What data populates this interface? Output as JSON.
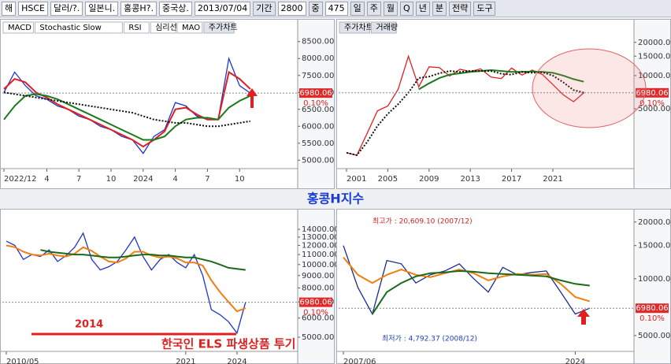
{
  "toolbar": {
    "items": [
      "해",
      "HSCE",
      "달러/?.",
      "일본니.",
      "홍콩H?.",
      "중국상.",
      "2013/07/04",
      "기간",
      "2800",
      "중",
      "475"
    ],
    "periods": [
      "일",
      "주",
      "월",
      "Q",
      "년",
      "분"
    ],
    "menus": [
      "전략",
      "도구"
    ]
  },
  "title": "홍콩H지수",
  "chart_data": [
    {
      "type": "line",
      "tabs": [
        "MACD",
        "Stochastic Slow",
        "RSI",
        "심리선",
        "MAO",
        "주가차트"
      ],
      "ylim": [
        4774,
        8680
      ],
      "yticks": [
        {
          "value": 5000,
          "label": "5000.00"
        },
        {
          "value": 5500,
          "label": "5500.00"
        },
        {
          "value": 6000,
          "label": "6000.00"
        },
        {
          "value": 6500,
          "label": "6500.00"
        },
        {
          "value": 7000,
          "label": "7000.00"
        },
        {
          "value": 7500,
          "label": "7500.00"
        },
        {
          "value": 8000,
          "label": "8000.00"
        },
        {
          "value": 8500,
          "label": "8500.00"
        }
      ],
      "xticks": [
        {
          "value": 0,
          "label": "2022/12"
        },
        {
          "value": 4,
          "label": "4"
        },
        {
          "value": 7,
          "label": "7"
        },
        {
          "value": 10,
          "label": "10"
        },
        {
          "value": 13,
          "label": "2024"
        },
        {
          "value": 16,
          "label": "4"
        },
        {
          "value": 19,
          "label": "7"
        },
        {
          "value": 22,
          "label": "10"
        }
      ],
      "last": 6980.06,
      "change": "0.10%",
      "series": [
        {
          "color": "#2233cc",
          "values": [
            7000,
            7600,
            7200,
            6900,
            6800,
            6600,
            6500,
            6300,
            6200,
            6000,
            5900,
            5700,
            5600,
            5200,
            5700,
            5900,
            6700,
            6600,
            6300,
            6200,
            6200,
            8000,
            7200,
            6980
          ]
        },
        {
          "color": "#e02020",
          "values": [
            7100,
            7400,
            7300,
            7000,
            6850,
            6650,
            6500,
            6350,
            6200,
            6050,
            5900,
            5750,
            5600,
            5400,
            5600,
            5850,
            6500,
            6550,
            6350,
            6200,
            6200,
            7600,
            7400,
            7100
          ]
        },
        {
          "color": "#1a7a1a",
          "values": [
            6200,
            6600,
            6900,
            6950,
            6900,
            6800,
            6650,
            6500,
            6350,
            6200,
            6050,
            5900,
            5750,
            5600,
            5600,
            5700,
            6000,
            6200,
            6250,
            6250,
            6200,
            6550,
            6750,
            6900
          ]
        },
        {
          "color": "#111111",
          "dash": true,
          "values": [
            7000,
            6950,
            6900,
            6850,
            6800,
            6750,
            6700,
            6650,
            6600,
            6550,
            6500,
            6450,
            6400,
            6300,
            6200,
            6150,
            6100,
            6100,
            6050,
            6000,
            6000,
            6050,
            6100,
            6150
          ]
        }
      ]
    },
    {
      "type": "line",
      "tabs": [
        "주가차트",
        "거래량"
      ],
      "log_scale": true,
      "ylim": [
        1460,
        23100
      ],
      "yticks": [
        {
          "value": 5000,
          "label": "5000.00"
        },
        {
          "value": 10000,
          "label": "10000.00"
        },
        {
          "value": 15000,
          "label": "15000.00"
        },
        {
          "value": 20000,
          "label": "20000.00"
        }
      ],
      "xticks": [
        {
          "value": 0,
          "label": "2001"
        },
        {
          "value": 4,
          "label": "2005"
        },
        {
          "value": 8,
          "label": "2009"
        },
        {
          "value": 12,
          "label": "2013"
        },
        {
          "value": 16,
          "label": "2017"
        },
        {
          "value": 20,
          "label": "2021"
        }
      ],
      "last": 6980.06,
      "change": "0.10%",
      "series": [
        {
          "color": "#e02020",
          "values": [
            2000,
            1900,
            3000,
            4800,
            5300,
            7500,
            15000,
            7900,
            12000,
            11800,
            9900,
            11400,
            10900,
            11500,
            9700,
            9400,
            11700,
            10100,
            11200,
            10200,
            8300,
            6700,
            5800,
            6980
          ]
        },
        {
          "color": "#1a7a1a",
          "values": [
            null,
            null,
            null,
            null,
            null,
            null,
            null,
            7500,
            8500,
            9500,
            10200,
            10500,
            10800,
            11000,
            11200,
            11000,
            10800,
            10800,
            10900,
            10800,
            10600,
            10000,
            9300,
            8800
          ]
        },
        {
          "color": "#111111",
          "dash": true,
          "values": [
            2000,
            1900,
            2500,
            3500,
            4500,
            5500,
            7000,
            9500,
            9800,
            10500,
            11000,
            10800,
            11000,
            11000,
            11000,
            10400,
            10200,
            10800,
            10600,
            10700,
            10000,
            8700,
            7400,
            7000
          ]
        }
      ]
    },
    {
      "type": "line",
      "log_scale": true,
      "ylim": [
        4400,
        16400
      ],
      "yticks": [
        {
          "value": 5000,
          "label": "5000.00"
        },
        {
          "value": 6000,
          "label": "6000.00"
        },
        {
          "value": 7000,
          "label": "7000.00"
        },
        {
          "value": 8000,
          "label": "8000.00"
        },
        {
          "value": 9000,
          "label": "9000.00"
        },
        {
          "value": 10000,
          "label": "10000.00"
        },
        {
          "value": 11000,
          "label": "11000.00"
        },
        {
          "value": 12000,
          "label": "12000.00"
        },
        {
          "value": 13000,
          "label": "13000.00"
        },
        {
          "value": 14000,
          "label": "14000.00"
        }
      ],
      "xticks": [
        {
          "value": 0,
          "label": "2010/05"
        },
        {
          "value": 21,
          "label": "2021"
        },
        {
          "value": 27,
          "label": "2024"
        }
      ],
      "last": 6980.06,
      "change": "0.10%",
      "annotations": [
        "2014",
        "한국인 ELS 파생상품 투기"
      ],
      "series": [
        {
          "color": "#2233cc",
          "values": [
            12500,
            12000,
            10500,
            11000,
            10800,
            11500,
            10300,
            10900,
            11800,
            13500,
            10500,
            9500,
            9800,
            10300,
            11500,
            13000,
            10800,
            9500,
            10500,
            11000,
            10200,
            9700,
            11000,
            9000,
            6500,
            6200,
            5800,
            5200,
            6980
          ]
        },
        {
          "color": "#f07f10",
          "values": [
            12000,
            11800,
            11300,
            11000,
            10900,
            11100,
            10900,
            10800,
            11100,
            11800,
            11400,
            10800,
            10300,
            10200,
            10600,
            11300,
            11300,
            10900,
            10700,
            10800,
            10600,
            10200,
            10200,
            9900,
            8600,
            7700,
            7000,
            6400,
            6600
          ]
        },
        {
          "color": "#1a6a1a",
          "values": [
            null,
            null,
            null,
            null,
            11500,
            11300,
            11200,
            11100,
            11000,
            11000,
            10900,
            10800,
            10700,
            10700,
            10800,
            10900,
            11000,
            11000,
            10900,
            10900,
            10800,
            10700,
            10700,
            10500,
            10300,
            10000,
            9700,
            9600,
            9500
          ]
        }
      ]
    },
    {
      "type": "line",
      "log_scale": true,
      "ylim": [
        4160,
        22400
      ],
      "yticks": [
        {
          "value": 5000,
          "label": "5000.00"
        },
        {
          "value": 10000,
          "label": "10000.00"
        },
        {
          "value": 15000,
          "label": "15000.00"
        },
        {
          "value": 20000,
          "label": "20000.00"
        }
      ],
      "xticks": [
        {
          "value": 0,
          "label": "2007/06"
        },
        {
          "value": 16,
          "label": "2024"
        }
      ],
      "last": 6980.06,
      "change": "0.10%",
      "annotations": [
        "최고가 : 20,609.10 (2007/12)",
        "최저가 : 4,792.37 (2008/12)"
      ],
      "series": [
        {
          "color": "#1a2a99",
          "values": [
            15000,
            9000,
            6500,
            12500,
            12000,
            9500,
            10500,
            11000,
            12000,
            10000,
            8500,
            11500,
            10500,
            10800,
            11000,
            8500,
            6500,
            6980
          ]
        },
        {
          "color": "#f07f10",
          "values": [
            13000,
            10500,
            9500,
            10500,
            11200,
            10500,
            10200,
            10700,
            11200,
            10700,
            9800,
            10300,
            10600,
            10500,
            10600,
            9400,
            8000,
            7600
          ]
        },
        {
          "color": "#1a6a1a",
          "values": [
            null,
            null,
            6500,
            8500,
            9500,
            10300,
            10700,
            10800,
            11000,
            10900,
            10700,
            10600,
            10500,
            10400,
            10300,
            9800,
            9400,
            9200
          ]
        }
      ]
    }
  ]
}
